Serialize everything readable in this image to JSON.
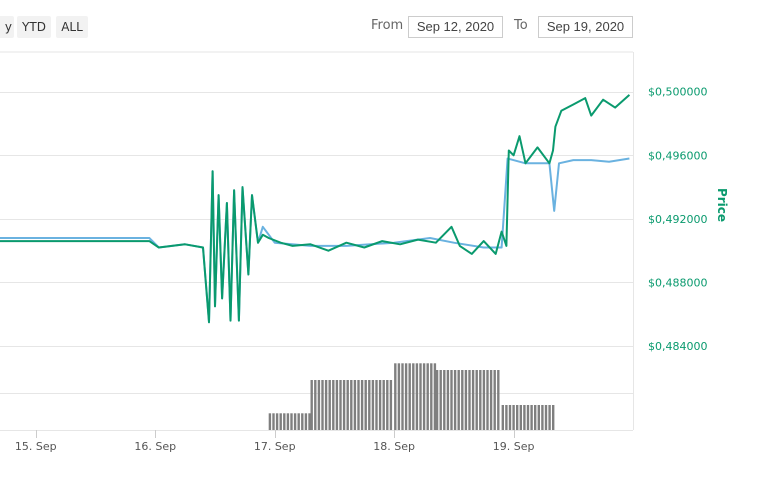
{
  "range_selector": {
    "buttons": [
      "y",
      "YTD",
      "ALL"
    ],
    "from_label": "From",
    "from_value": "Sep 12, 2020",
    "to_label": "To",
    "to_value": "Sep 19, 2020"
  },
  "chart_data": {
    "type": "line",
    "ylabel": "Price",
    "ylim": [
      0.4835,
      0.5025
    ],
    "y_ticks": [
      "$0,484000",
      "$0,488000",
      "$0,492000",
      "$0,496000",
      "$0,500000"
    ],
    "y_tick_values": [
      0.484,
      0.488,
      0.492,
      0.496,
      0.5
    ],
    "x_ticks": [
      "15. Sep",
      "16. Sep",
      "17. Sep",
      "18. Sep",
      "19. Sep"
    ],
    "x_tick_values": [
      15,
      16,
      17,
      18,
      19
    ],
    "xlim": [
      14.7,
      20.0
    ],
    "colors": {
      "price": "#0a9a6e",
      "secondary": "#6ab2e0",
      "volume": "#7f7f7f",
      "grid": "#e6e6e6",
      "axis": "#0a9a6e"
    },
    "series": [
      {
        "values": [
          [
            14.7,
            0.4908
          ],
          [
            15.95,
            0.4908
          ],
          [
            16.03,
            0.4902
          ],
          [
            16.25,
            0.4904
          ],
          [
            16.4,
            0.4902
          ],
          [
            16.45,
            0.4855
          ],
          [
            16.48,
            0.495
          ],
          [
            16.5,
            0.4865
          ],
          [
            16.53,
            0.4935
          ],
          [
            16.56,
            0.487
          ],
          [
            16.6,
            0.493
          ],
          [
            16.63,
            0.4856
          ],
          [
            16.66,
            0.4938
          ],
          [
            16.7,
            0.4856
          ],
          [
            16.73,
            0.494
          ],
          [
            16.78,
            0.4885
          ],
          [
            16.81,
            0.4935
          ],
          [
            16.86,
            0.4905
          ],
          [
            16.9,
            0.4915
          ],
          [
            17.0,
            0.4905
          ],
          [
            17.3,
            0.4903
          ],
          [
            17.6,
            0.4903
          ],
          [
            18.0,
            0.4905
          ],
          [
            18.3,
            0.4908
          ],
          [
            18.5,
            0.4905
          ],
          [
            18.75,
            0.4902
          ],
          [
            18.9,
            0.4902
          ],
          [
            18.95,
            0.4958
          ],
          [
            19.1,
            0.4955
          ],
          [
            19.2,
            0.4955
          ],
          [
            19.3,
            0.4955
          ],
          [
            19.34,
            0.4925
          ],
          [
            19.38,
            0.4955
          ],
          [
            19.5,
            0.4957
          ],
          [
            19.65,
            0.4957
          ],
          [
            19.8,
            0.4956
          ],
          [
            19.97,
            0.4958
          ]
        ]
      },
      {
        "values": [
          [
            14.7,
            0.4906
          ],
          [
            15.95,
            0.4906
          ],
          [
            16.03,
            0.4902
          ],
          [
            16.25,
            0.4904
          ],
          [
            16.4,
            0.4902
          ],
          [
            16.45,
            0.4855
          ],
          [
            16.48,
            0.495
          ],
          [
            16.5,
            0.4865
          ],
          [
            16.53,
            0.4935
          ],
          [
            16.56,
            0.487
          ],
          [
            16.6,
            0.493
          ],
          [
            16.63,
            0.4856
          ],
          [
            16.66,
            0.4938
          ],
          [
            16.7,
            0.4856
          ],
          [
            16.73,
            0.494
          ],
          [
            16.78,
            0.4885
          ],
          [
            16.81,
            0.4935
          ],
          [
            16.86,
            0.4905
          ],
          [
            16.9,
            0.491
          ],
          [
            16.95,
            0.4908
          ],
          [
            17.05,
            0.4905
          ],
          [
            17.15,
            0.4903
          ],
          [
            17.3,
            0.4904
          ],
          [
            17.45,
            0.49
          ],
          [
            17.6,
            0.4905
          ],
          [
            17.75,
            0.4902
          ],
          [
            17.9,
            0.4906
          ],
          [
            18.05,
            0.4904
          ],
          [
            18.2,
            0.4907
          ],
          [
            18.35,
            0.4905
          ],
          [
            18.48,
            0.4915
          ],
          [
            18.55,
            0.4903
          ],
          [
            18.65,
            0.4898
          ],
          [
            18.75,
            0.4906
          ],
          [
            18.85,
            0.4898
          ],
          [
            18.9,
            0.4912
          ],
          [
            18.94,
            0.4903
          ],
          [
            18.96,
            0.4963
          ],
          [
            19.0,
            0.496
          ],
          [
            19.05,
            0.4972
          ],
          [
            19.1,
            0.4955
          ],
          [
            19.2,
            0.4965
          ],
          [
            19.3,
            0.4955
          ],
          [
            19.33,
            0.4963
          ],
          [
            19.35,
            0.4978
          ],
          [
            19.4,
            0.4988
          ],
          [
            19.5,
            0.4992
          ],
          [
            19.6,
            0.4996
          ],
          [
            19.65,
            0.4985
          ],
          [
            19.75,
            0.4995
          ],
          [
            19.85,
            0.499
          ],
          [
            19.97,
            0.4998
          ]
        ]
      }
    ],
    "volume": {
      "values": [
        [
          16.95,
          1
        ],
        [
          17.3,
          3
        ],
        [
          18.0,
          4
        ],
        [
          18.35,
          3.6
        ],
        [
          18.9,
          1.5
        ],
        [
          19.35,
          0
        ]
      ],
      "ylim": [
        0,
        4.5
      ]
    }
  }
}
